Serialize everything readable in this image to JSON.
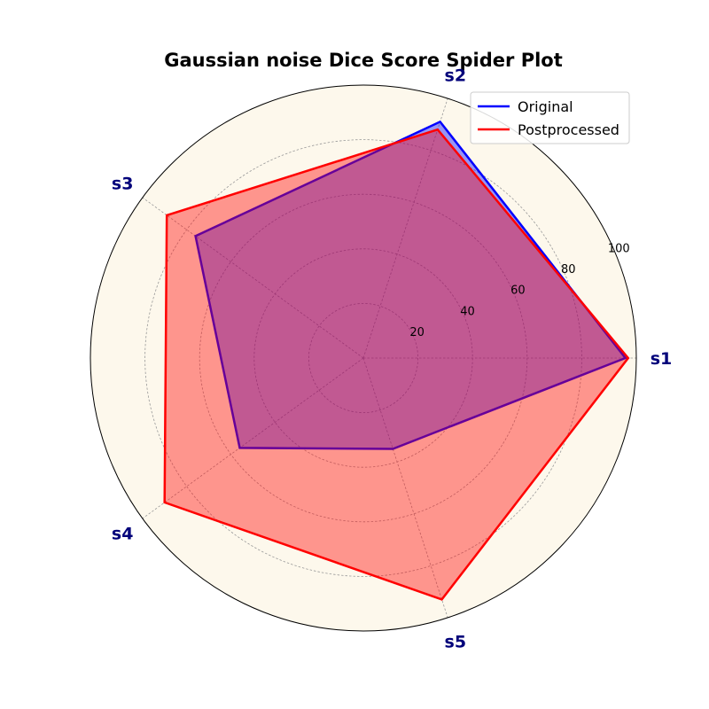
{
  "chart_data": {
    "type": "radar",
    "title": "Gaussian noise Dice Score Spider Plot",
    "axes": [
      "s1",
      "s2",
      "s3",
      "s4",
      "s5"
    ],
    "rlim": [
      0,
      100
    ],
    "r_ticks": [
      20,
      40,
      60,
      80,
      100
    ],
    "grid": true,
    "legend_position": "top-right",
    "series": [
      {
        "name": "Original",
        "values": [
          96,
          91,
          76,
          56,
          35
        ],
        "color": "#0000ff",
        "fill_color": "#0000ff"
      },
      {
        "name": "Postprocessed",
        "values": [
          97,
          88,
          89,
          90,
          93
        ],
        "color": "#ff0000",
        "fill_color": "#ff0000"
      }
    ],
    "background_color": "#fdf8ec",
    "axis_label_color": "#00007a"
  }
}
